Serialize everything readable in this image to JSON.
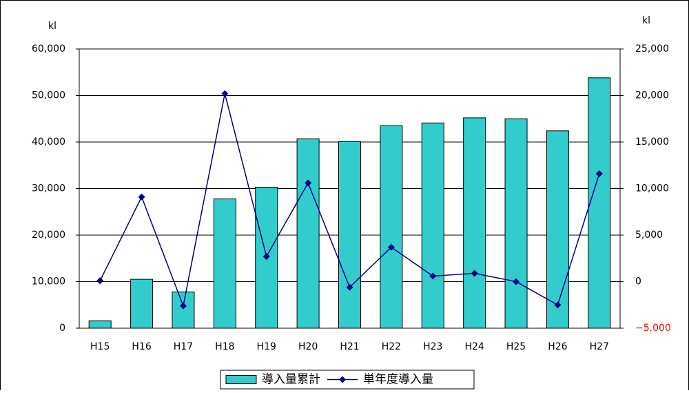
{
  "chart_data": {
    "type": "bar_line",
    "y_label": "kl",
    "y2_label": "kl",
    "categories": [
      "H15",
      "H16",
      "H17",
      "H18",
      "H19",
      "H20",
      "H21",
      "H22",
      "H23",
      "H24",
      "H25",
      "H26",
      "H27"
    ],
    "series": [
      {
        "name": "導入量累計",
        "type": "bar",
        "color": "#33cccc",
        "axis": "y",
        "values": [
          1600,
          10500,
          7800,
          27800,
          30300,
          40700,
          40100,
          43500,
          44100,
          45200,
          45000,
          42400,
          53800
        ]
      },
      {
        "name": "単年度導入量",
        "type": "line",
        "color": "#000080",
        "axis": "y2",
        "values": [
          100,
          9100,
          -2600,
          20200,
          2700,
          10600,
          -600,
          3700,
          600,
          900,
          0,
          -2500,
          11600
        ]
      }
    ],
    "ylim": [
      0,
      60000
    ],
    "yticks": [
      0,
      {
        "value": 10000,
        "label": "10,000"
      },
      {
        "value": 20000,
        "label": "20,000"
      },
      {
        "value": 30000,
        "label": "30,000"
      },
      {
        "value": 40000,
        "label": "40,000"
      },
      {
        "value": 50000,
        "label": "50,000"
      },
      {
        "value": 60000,
        "label": "60,000"
      }
    ],
    "y2lim": [
      -5000,
      25000
    ],
    "y2ticks": [
      {
        "value": -5000,
        "label": "−5,000"
      },
      0,
      {
        "value": 5000,
        "label": "5,000"
      },
      {
        "value": 10000,
        "label": "10,000"
      },
      {
        "value": 15000,
        "label": "15,000"
      },
      {
        "value": 20000,
        "label": "20,000"
      },
      {
        "value": 25000,
        "label": "25,000"
      }
    ],
    "grid": true,
    "legend": "bottom"
  }
}
